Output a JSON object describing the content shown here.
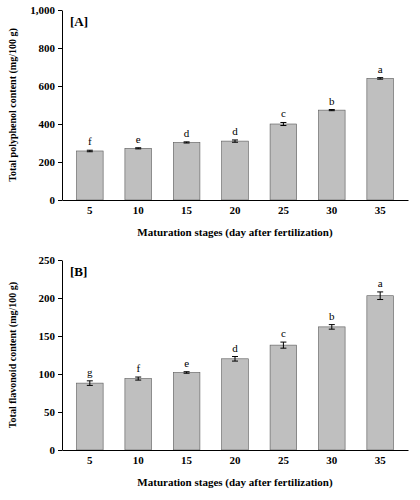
{
  "chart_data": [
    {
      "type": "bar",
      "title": "[A]",
      "x_label": "Maturation stages (day after fertilization)",
      "y_label": "Total polyphenol content (mg/100 g)",
      "categories": [
        "5",
        "10",
        "15",
        "20",
        "25",
        "30",
        "35"
      ],
      "values": [
        258,
        272,
        303,
        310,
        400,
        473,
        640
      ],
      "errors": [
        4,
        3,
        3,
        6,
        8,
        3,
        4
      ],
      "annotations": [
        "f",
        "e",
        "d",
        "d",
        "c",
        "b",
        "a"
      ],
      "color": "#bfbfbf",
      "ylim": [
        0,
        1000
      ],
      "yticks": [
        0,
        200,
        400,
        600,
        800,
        {
          "value": 1000,
          "label": "1,000"
        }
      ],
      "grid": false
    },
    {
      "type": "bar",
      "title": "[B]",
      "x_label": "Maturation stages (day after fertilization)",
      "y_label": "Total flavonoid content (mg/100 g)",
      "categories": [
        "5",
        "10",
        "15",
        "20",
        "25",
        "30",
        "35"
      ],
      "values": [
        88,
        94,
        102,
        120,
        138,
        162,
        203
      ],
      "errors": [
        3,
        2,
        1,
        3,
        4,
        3,
        5
      ],
      "annotations": [
        "g",
        "f",
        "e",
        "d",
        "c",
        "b",
        "a"
      ],
      "color": "#bfbfbf",
      "ylim": [
        0,
        250
      ],
      "yticks": [
        0,
        50,
        100,
        150,
        200,
        250
      ],
      "grid": false
    }
  ]
}
